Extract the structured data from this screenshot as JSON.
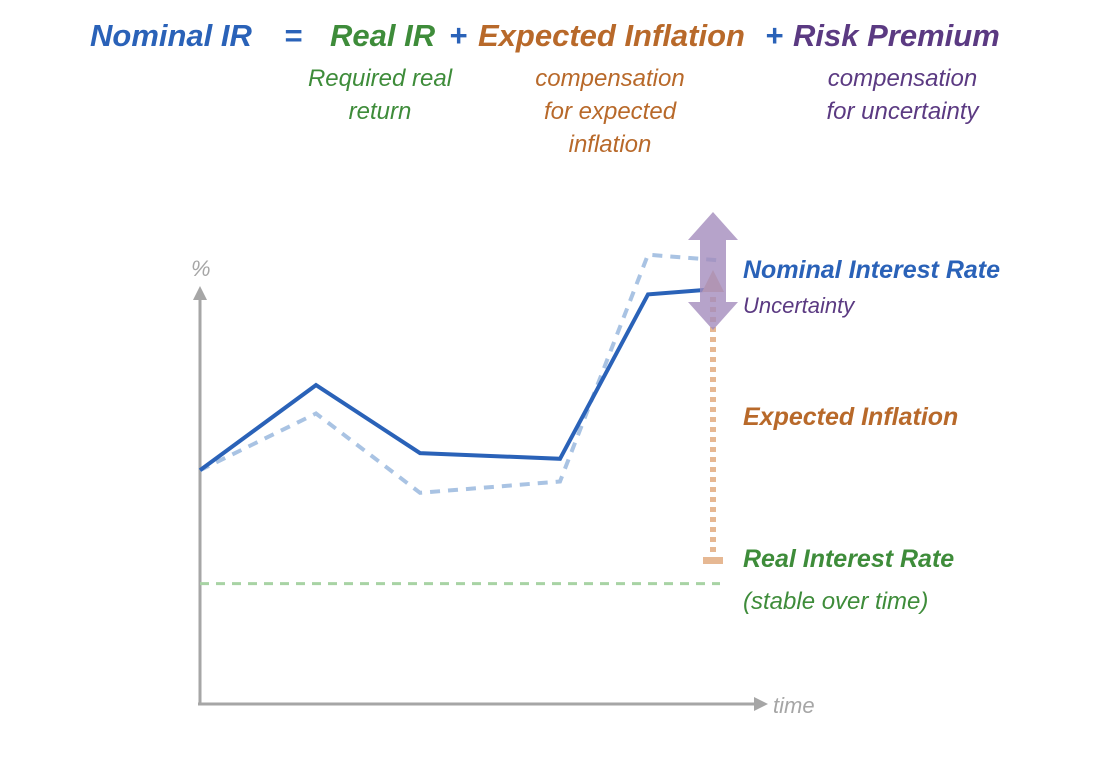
{
  "colors": {
    "nominal": "#2a62b8",
    "nominal_dashed": "#a9c3e3",
    "real": "#3e8c3a",
    "real_dashed": "#a8d3a4",
    "inflation": "#b8692a",
    "inflation_dotted": "#e6b893",
    "risk": "#5b3a82",
    "risk_arrow": "#a48dbd",
    "axis": "#a6a6a6"
  },
  "equation": {
    "nominal": "Nominal IR",
    "equals": "=",
    "real": "Real IR",
    "plus1": "+",
    "inflation": "Expected Inflation",
    "plus2": "+",
    "risk": "Risk Premium"
  },
  "descriptions": {
    "real": "Required real\nreturn",
    "inflation": "compensation\nfor expected\ninflation",
    "risk": "compensation\nfor uncertainty"
  },
  "axes": {
    "y_label": "%",
    "x_label": "time"
  },
  "labels": {
    "nominal": "Nominal Interest Rate",
    "uncertainty": "Uncertainty",
    "inflation": "Expected Inflation",
    "real": "Real Interest Rate",
    "real_note": "(stable over time)"
  },
  "chart_data": {
    "type": "line",
    "x": [
      0,
      1,
      2,
      3,
      4,
      5
    ],
    "series": [
      {
        "values": [
          5.2,
          6.7,
          5.5,
          5.4,
          8.3,
          8.4
        ]
      },
      {
        "values": [
          5.2,
          6.2,
          4.8,
          5.0,
          9.0,
          8.9
        ]
      },
      {
        "values": [
          3.2,
          3.2,
          3.2,
          3.2,
          3.2,
          3.2
        ]
      }
    ],
    "ylim": [
      0,
      10
    ],
    "xlabel": "time",
    "ylabel": "%"
  }
}
